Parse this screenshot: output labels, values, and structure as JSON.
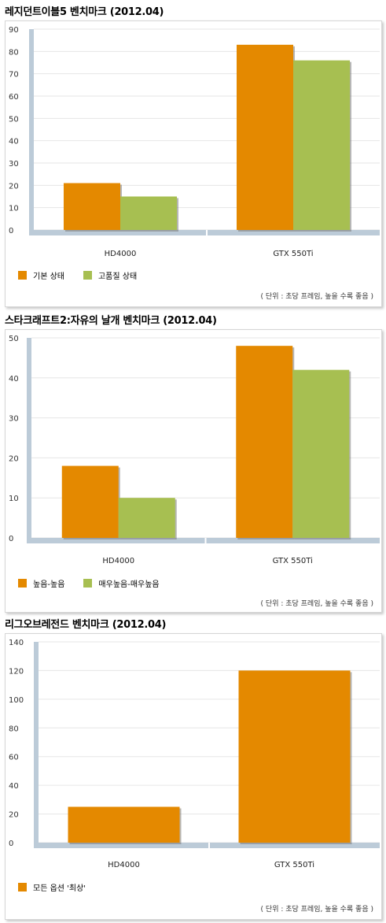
{
  "colors": {
    "orange": "#e48900",
    "green": "#a7bf51",
    "axis": "#bccbd8",
    "grid": "#e6e6e6"
  },
  "chart_data": [
    {
      "type": "bar",
      "title": "레지던트이블5 벤치마크 (2012.04)",
      "categories": [
        "HD4000",
        "GTX 550Ti"
      ],
      "series": [
        {
          "name": "기본 상태",
          "values": [
            21,
            83
          ]
        },
        {
          "name": "고품질 상태",
          "values": [
            15,
            76
          ]
        }
      ],
      "ylim": [
        0,
        90
      ],
      "yticks": [
        0,
        10,
        20,
        30,
        40,
        50,
        60,
        70,
        80,
        90
      ],
      "grid": true,
      "legend": "bottom-left",
      "note": "( 단위 : 초당 프레임, 높을 수록 좋음 )"
    },
    {
      "type": "bar",
      "title": "스타크래프트2:자유의 날개 벤치마크 (2012.04)",
      "categories": [
        "HD4000",
        "GTX 550Ti"
      ],
      "series": [
        {
          "name": "높음-높음",
          "values": [
            18,
            48
          ]
        },
        {
          "name": "매우높음-매우높음",
          "values": [
            10,
            42
          ]
        }
      ],
      "ylim": [
        0,
        50
      ],
      "yticks": [
        0,
        10,
        20,
        30,
        40,
        50
      ],
      "grid": true,
      "legend": "bottom-left",
      "note": "( 단위 : 초당 프레임, 높을 수록 좋음 )"
    },
    {
      "type": "bar",
      "title": "리그오브레전드 벤치마크 (2012.04)",
      "categories": [
        "HD4000",
        "GTX 550Ti"
      ],
      "series": [
        {
          "name": "모든 옵션 '최상'",
          "values": [
            25,
            120
          ]
        }
      ],
      "ylim": [
        0,
        140
      ],
      "yticks": [
        0,
        20,
        40,
        60,
        80,
        100,
        120,
        140
      ],
      "grid": true,
      "legend": "bottom-left",
      "note": "( 단위 : 초당 프레임, 높을 수록 좋음 )"
    }
  ]
}
